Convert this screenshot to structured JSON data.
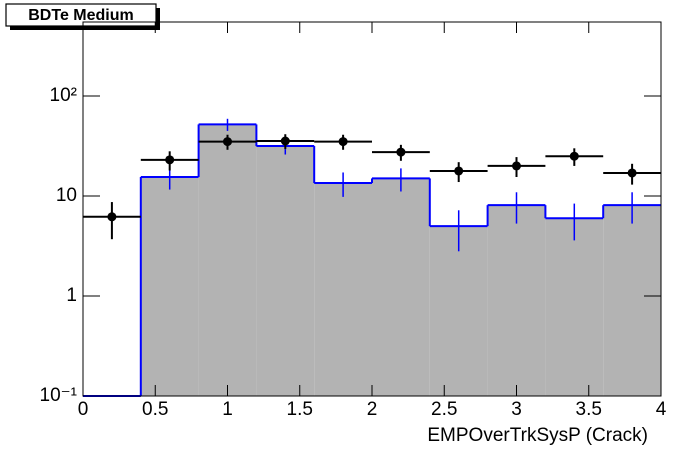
{
  "chart_data": {
    "type": "histogram",
    "title": "BDTe Medium",
    "x_label": "EMPOverTrkSysP (Crack)",
    "bins": [
      0,
      0.4,
      0.8,
      1.2,
      1.6,
      2.0,
      2.4,
      2.8,
      3.2,
      3.6,
      4.0
    ],
    "log_y": true,
    "xlim": [
      0,
      4
    ],
    "ylim": [
      0.1,
      550
    ],
    "xticks": [
      0,
      0.5,
      1,
      1.5,
      2,
      2.5,
      3,
      3.5,
      4
    ],
    "yticks": [
      {
        "value": 0.1,
        "label": "10⁻¹"
      },
      1,
      10,
      {
        "value": 100,
        "label": "10²"
      }
    ],
    "series": [
      {
        "style": "filled-step",
        "color": "#0000ff",
        "fill": "#b3b3b3",
        "values": [
          0,
          15.5,
          52,
          31.6,
          13.5,
          15,
          5,
          8.1,
          6,
          8.1
        ],
        "errors": [
          null,
          3.9,
          7.2,
          5.6,
          3.7,
          3.9,
          2.2,
          2.8,
          2.4,
          2.8
        ]
      },
      {
        "style": "points",
        "color": "#000000",
        "values": [
          6.2,
          23,
          35,
          35.5,
          35,
          27.5,
          17.8,
          20,
          25,
          17
        ],
        "errors": [
          2.5,
          5,
          6,
          6,
          6,
          5,
          4,
          4.5,
          5,
          4
        ]
      }
    ]
  }
}
